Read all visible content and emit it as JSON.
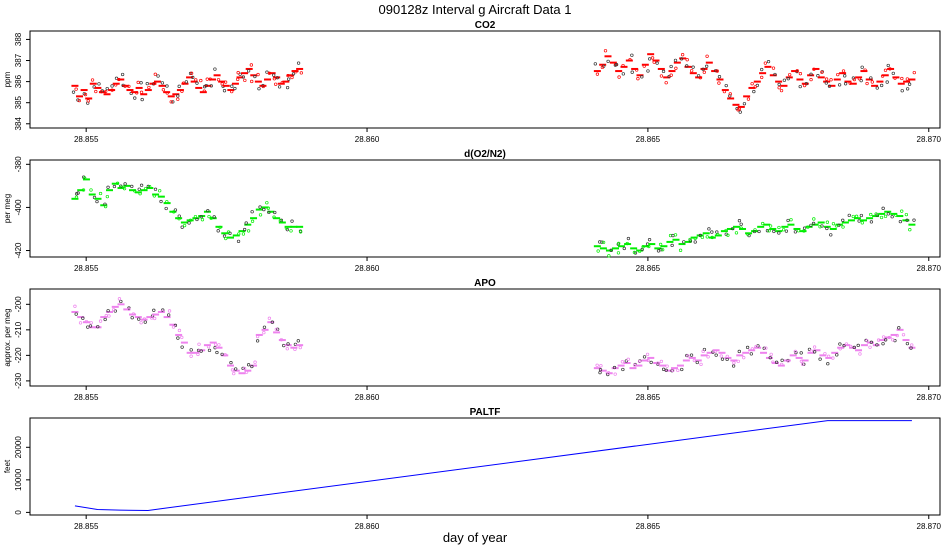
{
  "page": {
    "title": "090128z   Interval g Aircraft Data 1",
    "xlabel": "day of year"
  },
  "colors": {
    "co2": "#ff0000",
    "o2n2": "#00ee00",
    "apo": "#ee82ee",
    "paltf": "#0000ff",
    "frame": "#000000"
  },
  "chart_data": [
    {
      "type": "scatter",
      "title": "CO2",
      "ylabel": "ppm",
      "xlim": [
        28.854,
        28.8702
      ],
      "ylim": [
        383.8,
        388.4
      ],
      "xticks": [
        "28.855",
        "28.860",
        "28.865",
        "28.870"
      ],
      "yticks": [
        "384",
        "385",
        "386",
        "387",
        "388"
      ],
      "segments": [
        {
          "x_start": 28.8548,
          "x_end": 28.8588,
          "values": [
            385.8,
            385.3,
            385.6,
            385.2,
            385.9,
            385.7,
            385.5,
            385.4,
            385.6,
            385.9,
            386.1,
            385.8,
            385.6,
            385.5,
            385.7,
            385.4,
            385.6,
            385.9,
            386.0,
            385.8,
            385.5,
            385.3,
            385.4,
            385.6,
            385.9,
            386.2,
            386.0,
            385.7,
            385.5,
            385.8,
            386.1,
            386.3,
            386.0,
            385.8,
            385.6,
            385.9,
            386.2,
            386.4,
            386.6,
            386.3,
            386.0,
            385.8,
            386.1,
            386.4,
            386.2,
            385.9,
            386.0,
            386.3,
            386.5,
            386.6
          ]
        },
        {
          "x_start": 28.8641,
          "x_end": 28.8697,
          "values": [
            386.5,
            386.8,
            387.2,
            386.9,
            386.5,
            386.7,
            387.0,
            386.6,
            386.3,
            386.8,
            387.3,
            387.0,
            386.6,
            386.2,
            386.5,
            386.9,
            387.1,
            386.7,
            386.4,
            386.2,
            386.6,
            386.9,
            386.5,
            386.1,
            385.6,
            385.2,
            384.9,
            384.8,
            385.3,
            385.7,
            386.0,
            386.4,
            386.7,
            386.3,
            386.0,
            385.8,
            386.2,
            386.5,
            386.1,
            385.9,
            386.3,
            386.6,
            386.2,
            386.0,
            385.8,
            386.1,
            386.4,
            386.0,
            385.9,
            386.2,
            386.5,
            386.1,
            385.8,
            386.0,
            386.3,
            386.6,
            386.2,
            385.9,
            386.0,
            386.1
          ]
        }
      ]
    },
    {
      "type": "scatter",
      "title": "d(O2/N2)",
      "ylabel": "per meg",
      "xlim": [
        28.854,
        28.8702
      ],
      "ylim": [
        -423,
        -378
      ],
      "xticks": [
        "28.855",
        "28.860",
        "28.865",
        "28.870"
      ],
      "yticks": [
        "-380",
        "-400",
        "-420"
      ],
      "segments": [
        {
          "x_start": 28.8548,
          "x_end": 28.8588,
          "values": [
            -396,
            -392,
            -387,
            -394,
            -396,
            -399,
            -392,
            -389,
            -391,
            -390,
            -392,
            -393,
            -392,
            -391,
            -394,
            -395,
            -398,
            -402,
            -405,
            -407,
            -406,
            -405,
            -404,
            -402,
            -405,
            -409,
            -412,
            -414,
            -413,
            -411,
            -408,
            -405,
            -401,
            -400,
            -402,
            -405,
            -407,
            -409,
            -409,
            -409
          ]
        },
        {
          "x_start": 28.8641,
          "x_end": 28.8697,
          "values": [
            -418,
            -419,
            -420,
            -419,
            -418,
            -417,
            -419,
            -420,
            -418,
            -417,
            -419,
            -418,
            -416,
            -415,
            -417,
            -416,
            -414,
            -413,
            -412,
            -414,
            -413,
            -411,
            -410,
            -409,
            -410,
            -412,
            -411,
            -409,
            -408,
            -410,
            -411,
            -409,
            -408,
            -410,
            -411,
            -409,
            -408,
            -407,
            -409,
            -410,
            -408,
            -407,
            -406,
            -405,
            -406,
            -405,
            -404,
            -403,
            -402,
            -403,
            -404,
            -406,
            -408
          ]
        }
      ]
    },
    {
      "type": "scatter",
      "title": "APO",
      "ylabel": "approx. per meg",
      "xlim": [
        28.854,
        28.8702
      ],
      "ylim": [
        -232,
        -194
      ],
      "xticks": [
        "28.855",
        "28.860",
        "28.865",
        "28.870"
      ],
      "yticks": [
        "-200",
        "-210",
        "-220",
        "-230"
      ],
      "segments": [
        {
          "x_start": 28.8548,
          "x_end": 28.8588,
          "values": [
            -203,
            -205,
            -207,
            -209,
            -209,
            -205,
            -203,
            -201,
            -200,
            -202,
            -204,
            -205,
            -206,
            -205,
            -204,
            -203,
            -205,
            -208,
            -212,
            -215,
            -219,
            -219,
            -218,
            -216,
            -215,
            -217,
            -220,
            -224,
            -226,
            -227,
            -226,
            -224,
            -212,
            -210,
            -207,
            -211,
            -214,
            -216,
            -217,
            -216
          ]
        },
        {
          "x_start": 28.8641,
          "x_end": 28.8697,
          "values": [
            -225,
            -226,
            -227,
            -225,
            -224,
            -223,
            -225,
            -224,
            -222,
            -221,
            -223,
            -224,
            -226,
            -225,
            -224,
            -222,
            -221,
            -222,
            -220,
            -219,
            -218,
            -219,
            -221,
            -222,
            -220,
            -219,
            -218,
            -217,
            -219,
            -221,
            -223,
            -224,
            -222,
            -220,
            -221,
            -222,
            -219,
            -218,
            -220,
            -221,
            -219,
            -217,
            -216,
            -217,
            -218,
            -216,
            -215,
            -216,
            -214,
            -213,
            -212,
            -210,
            -214,
            -217
          ]
        }
      ]
    },
    {
      "type": "line",
      "title": "PALTF",
      "ylabel": "feet",
      "xlim": [
        28.854,
        28.8702
      ],
      "ylim": [
        -800,
        29000
      ],
      "xticks": [
        "28.855",
        "28.860",
        "28.865",
        "28.870"
      ],
      "yticks": [
        "0",
        "10000",
        "20000"
      ],
      "x": [
        28.8548,
        28.8552,
        28.8556,
        28.8561,
        28.8682,
        28.8697
      ],
      "y": [
        2000,
        900,
        700,
        600,
        28200,
        28200
      ]
    }
  ]
}
